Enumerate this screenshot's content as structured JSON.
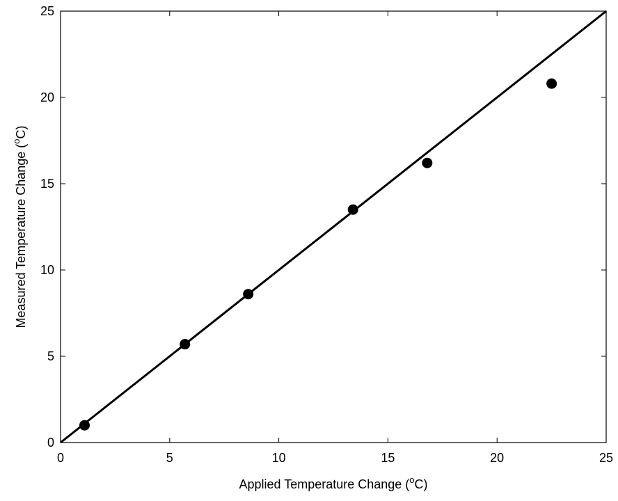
{
  "chart_data": {
    "type": "scatter",
    "xlabel": "Applied Temperature Change (",
    "xlabel_sup": "o",
    "xlabel_end": "C)",
    "ylabel": "Measured Temperature Change (",
    "ylabel_sup": "o",
    "ylabel_end": "C)",
    "xlim": [
      0,
      25
    ],
    "ylim": [
      0,
      25
    ],
    "xticks": [
      0,
      5,
      10,
      15,
      20,
      25
    ],
    "yticks": [
      0,
      5,
      10,
      15,
      20,
      25
    ],
    "grid": false,
    "series": [
      {
        "type": "scatter",
        "x": [
          1.1,
          5.7,
          8.6,
          13.4,
          16.8,
          22.5
        ],
        "y": [
          1.0,
          5.7,
          8.6,
          13.5,
          16.2,
          20.8
        ]
      },
      {
        "type": "line",
        "x": [
          0,
          25
        ],
        "y": [
          0,
          25
        ]
      }
    ],
    "colors": {
      "axis": "#000000",
      "marker": "#000000",
      "line": "#000000"
    }
  }
}
